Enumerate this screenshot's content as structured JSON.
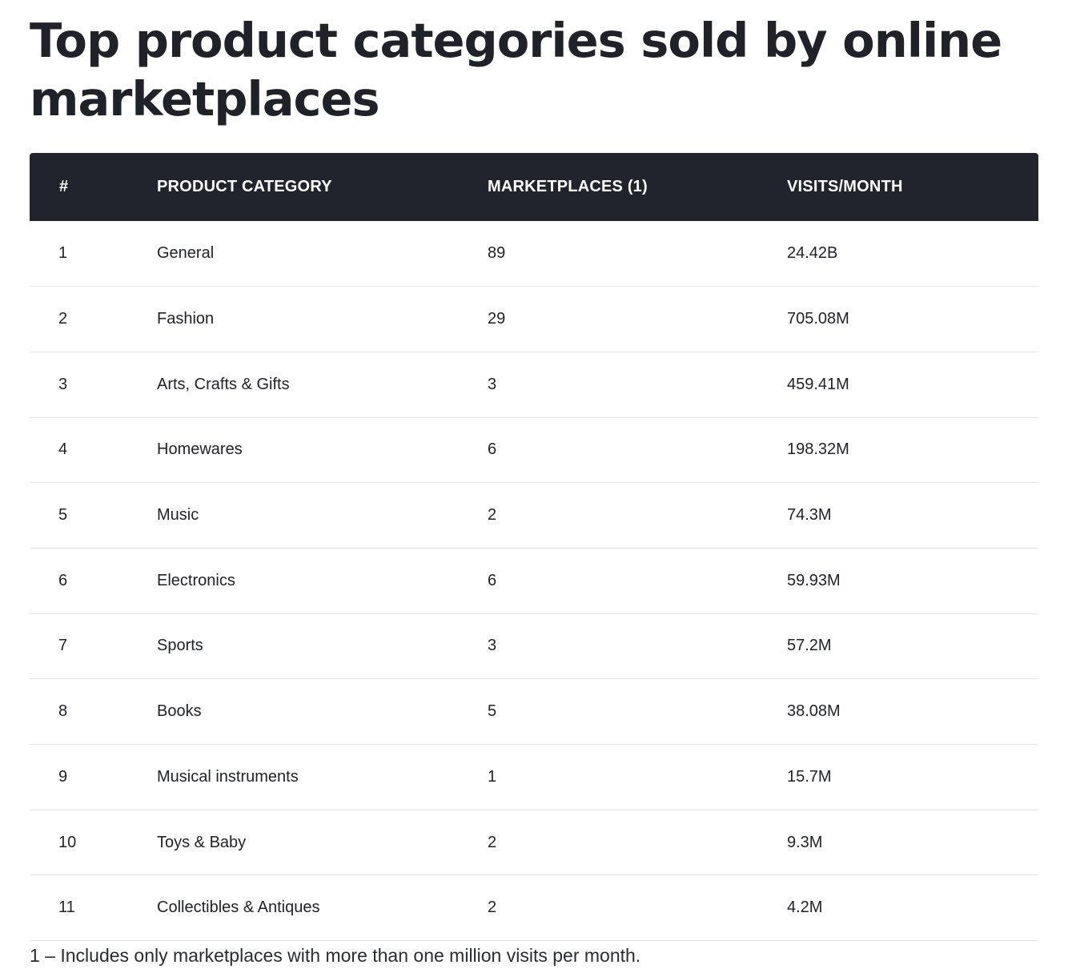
{
  "title": "Top product categories sold by online marketplaces",
  "table": {
    "headers": [
      "#",
      "PRODUCT CATEGORY",
      "MARKETPLACES (1)",
      "VISITS/MONTH"
    ],
    "rows": [
      {
        "rank": "1",
        "category": "General",
        "marketplaces": "89",
        "visits": "24.42B"
      },
      {
        "rank": "2",
        "category": "Fashion",
        "marketplaces": "29",
        "visits": "705.08M"
      },
      {
        "rank": "3",
        "category": "Arts, Crafts & Gifts",
        "marketplaces": "3",
        "visits": "459.41M"
      },
      {
        "rank": "4",
        "category": "Homewares",
        "marketplaces": "6",
        "visits": "198.32M"
      },
      {
        "rank": "5",
        "category": "Music",
        "marketplaces": "2",
        "visits": "74.3M"
      },
      {
        "rank": "6",
        "category": "Electronics",
        "marketplaces": "6",
        "visits": "59.93M"
      },
      {
        "rank": "7",
        "category": "Sports",
        "marketplaces": "3",
        "visits": "57.2M"
      },
      {
        "rank": "8",
        "category": "Books",
        "marketplaces": "5",
        "visits": "38.08M"
      },
      {
        "rank": "9",
        "category": "Musical instruments",
        "marketplaces": "1",
        "visits": "15.7M"
      },
      {
        "rank": "10",
        "category": "Toys & Baby",
        "marketplaces": "2",
        "visits": "9.3M"
      },
      {
        "rank": "11",
        "category": "Collectibles & Antiques",
        "marketplaces": "2",
        "visits": "4.2M"
      }
    ]
  },
  "footnote": "1 – Includes only marketplaces with more than one million visits per month.",
  "colors": {
    "header_background": "#21242d",
    "header_text": "#ffffff",
    "text": "#1f2128",
    "row_divider": "#e3e4e8"
  }
}
